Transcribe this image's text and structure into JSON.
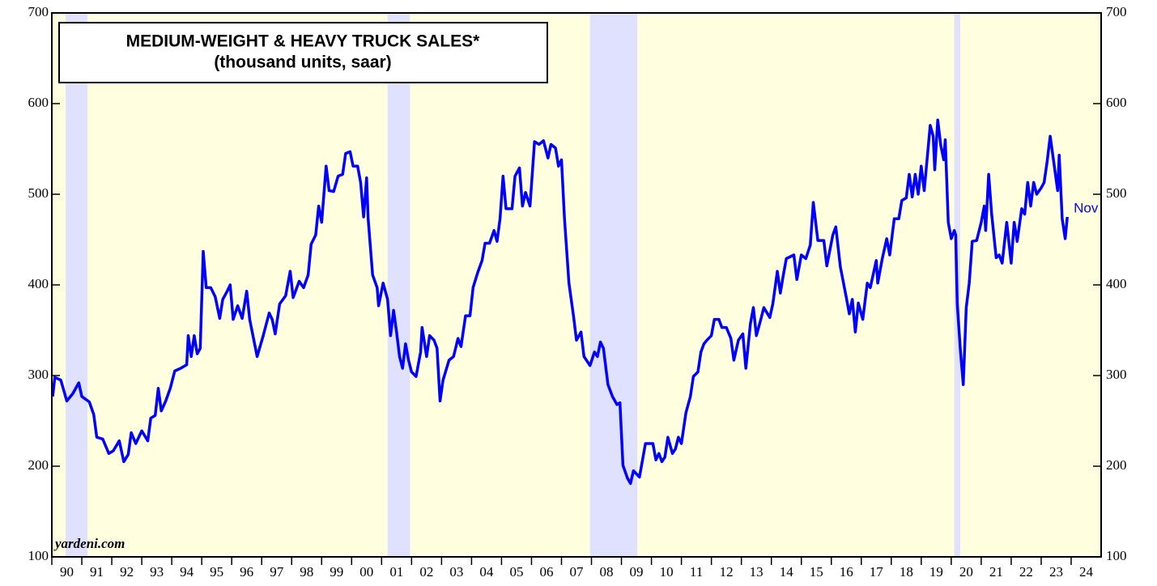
{
  "chart_data": {
    "type": "line",
    "title": "MEDIUM-WEIGHT & HEAVY TRUCK SALES*",
    "subtitle": "(thousand units, saar)",
    "source": "yardeni.com",
    "end_label": "Nov",
    "grid": false,
    "background": "#ffffe0",
    "recession_color": "#e0e0ff",
    "recessions": [
      [
        1990.46,
        1991.19
      ],
      [
        2001.2,
        2001.95
      ],
      [
        2007.95,
        2009.53
      ],
      [
        2020.1,
        2020.3
      ]
    ],
    "xlim": [
      1990,
      2025
    ],
    "xticks": [
      {
        "value": 1990,
        "label": "90"
      },
      {
        "value": 1991,
        "label": "91"
      },
      {
        "value": 1992,
        "label": "92"
      },
      {
        "value": 1993,
        "label": "93"
      },
      {
        "value": 1994,
        "label": "94"
      },
      {
        "value": 1995,
        "label": "95"
      },
      {
        "value": 1996,
        "label": "96"
      },
      {
        "value": 1997,
        "label": "97"
      },
      {
        "value": 1998,
        "label": "98"
      },
      {
        "value": 1999,
        "label": "99"
      },
      {
        "value": 2000,
        "label": "00"
      },
      {
        "value": 2001,
        "label": "01"
      },
      {
        "value": 2002,
        "label": "02"
      },
      {
        "value": 2003,
        "label": "03"
      },
      {
        "value": 2004,
        "label": "04"
      },
      {
        "value": 2005,
        "label": "05"
      },
      {
        "value": 2006,
        "label": "06"
      },
      {
        "value": 2007,
        "label": "07"
      },
      {
        "value": 2008,
        "label": "08"
      },
      {
        "value": 2009,
        "label": "09"
      },
      {
        "value": 2010,
        "label": "10"
      },
      {
        "value": 2011,
        "label": "11"
      },
      {
        "value": 2012,
        "label": "12"
      },
      {
        "value": 2013,
        "label": "13"
      },
      {
        "value": 2014,
        "label": "14"
      },
      {
        "value": 2015,
        "label": "15"
      },
      {
        "value": 2016,
        "label": "16"
      },
      {
        "value": 2017,
        "label": "17"
      },
      {
        "value": 2018,
        "label": "18"
      },
      {
        "value": 2019,
        "label": "19"
      },
      {
        "value": 2020,
        "label": "20"
      },
      {
        "value": 2021,
        "label": "21"
      },
      {
        "value": 2022,
        "label": "22"
      },
      {
        "value": 2023,
        "label": "23"
      },
      {
        "value": 2024,
        "label": "24"
      }
    ],
    "ylim": [
      100,
      700
    ],
    "yticks": [
      100,
      200,
      300,
      400,
      500,
      600,
      700
    ],
    "series": [
      {
        "color": "#0000ff",
        "x": [
          1990.03,
          1990.1,
          1990.3,
          1990.5,
          1990.7,
          1990.9,
          1991.0,
          1991.25,
          1991.4,
          1991.5,
          1991.7,
          1991.9,
          1992.05,
          1992.25,
          1992.4,
          1992.55,
          1992.65,
          1992.8,
          1993.0,
          1993.2,
          1993.3,
          1993.45,
          1993.55,
          1993.65,
          1993.8,
          1993.95,
          1994.1,
          1994.3,
          1994.5,
          1994.55,
          1994.65,
          1994.75,
          1994.85,
          1994.95,
          1995.05,
          1995.15,
          1995.3,
          1995.45,
          1995.6,
          1995.7,
          1995.85,
          1995.95,
          1996.05,
          1996.2,
          1996.35,
          1996.5,
          1996.6,
          1996.85,
          1997.05,
          1997.25,
          1997.35,
          1997.45,
          1997.6,
          1997.8,
          1997.95,
          1998.05,
          1998.25,
          1998.4,
          1998.55,
          1998.65,
          1998.8,
          1998.9,
          1999.0,
          1999.15,
          1999.25,
          1999.4,
          1999.55,
          1999.7,
          1999.8,
          1999.95,
          2000.05,
          2000.2,
          2000.3,
          2000.4,
          2000.5,
          2000.55,
          2000.7,
          2000.85,
          2000.9,
          2001.05,
          2001.2,
          2001.3,
          2001.4,
          2001.5,
          2001.6,
          2001.7,
          2001.8,
          2001.9,
          2002.0,
          2002.15,
          2002.3,
          2002.35,
          2002.5,
          2002.6,
          2002.75,
          2002.85,
          2002.95,
          2003.05,
          2003.25,
          2003.4,
          2003.55,
          2003.65,
          2003.8,
          2003.95,
          2004.05,
          2004.2,
          2004.35,
          2004.45,
          2004.6,
          2004.75,
          2004.85,
          2004.95,
          2005.05,
          2005.15,
          2005.35,
          2005.45,
          2005.6,
          2005.7,
          2005.8,
          2005.95,
          2006.1,
          2006.25,
          2006.4,
          2006.55,
          2006.65,
          2006.8,
          2006.9,
          2007.0,
          2007.1,
          2007.25,
          2007.4,
          2007.5,
          2007.65,
          2007.75,
          2007.95,
          2008.1,
          2008.2,
          2008.3,
          2008.4,
          2008.55,
          2008.7,
          2008.85,
          2008.95,
          2009.05,
          2009.2,
          2009.3,
          2009.4,
          2009.6,
          2009.8,
          2010.05,
          2010.15,
          2010.25,
          2010.35,
          2010.45,
          2010.55,
          2010.7,
          2010.8,
          2010.9,
          2011.0,
          2011.15,
          2011.3,
          2011.4,
          2011.55,
          2011.65,
          2011.75,
          2011.85,
          2012.0,
          2012.1,
          2012.25,
          2012.35,
          2012.5,
          2012.65,
          2012.75,
          2012.9,
          2013.05,
          2013.15,
          2013.3,
          2013.4,
          2013.5,
          2013.65,
          2013.75,
          2013.95,
          2014.05,
          2014.2,
          2014.3,
          2014.4,
          2014.5,
          2014.75,
          2014.85,
          2015.0,
          2015.15,
          2015.3,
          2015.4,
          2015.55,
          2015.75,
          2015.85,
          2016.05,
          2016.15,
          2016.3,
          2016.5,
          2016.6,
          2016.7,
          2016.8,
          2016.9,
          2017.05,
          2017.2,
          2017.3,
          2017.5,
          2017.55,
          2017.7,
          2017.85,
          2017.95,
          2018.1,
          2018.25,
          2018.35,
          2018.5,
          2018.6,
          2018.7,
          2018.8,
          2018.9,
          2019.0,
          2019.1,
          2019.3,
          2019.4,
          2019.45,
          2019.55,
          2019.65,
          2019.75,
          2019.8,
          2019.9,
          2020.0,
          2020.1,
          2020.15,
          2020.2,
          2020.3,
          2020.4,
          2020.5,
          2020.6,
          2020.7,
          2020.85,
          2021.0,
          2021.1,
          2021.15,
          2021.25,
          2021.35,
          2021.5,
          2021.6,
          2021.7,
          2021.85,
          2022.0,
          2022.1,
          2022.2,
          2022.35,
          2022.45,
          2022.55,
          2022.65,
          2022.75,
          2022.85,
          2023.0,
          2023.1,
          2023.2,
          2023.3,
          2023.4,
          2023.55,
          2023.6,
          2023.7,
          2023.8,
          2023.87
        ],
        "values": [
          277,
          298,
          295,
          272,
          280,
          292,
          277,
          271,
          257,
          232,
          230,
          214,
          217,
          228,
          205,
          213,
          237,
          225,
          239,
          228,
          253,
          256,
          286,
          261,
          272,
          286,
          305,
          308,
          312,
          344,
          321,
          344,
          324,
          330,
          437,
          397,
          397,
          387,
          363,
          384,
          393,
          400,
          362,
          377,
          363,
          393,
          362,
          321,
          344,
          369,
          362,
          346,
          379,
          388,
          415,
          386,
          404,
          397,
          411,
          445,
          455,
          487,
          469,
          531,
          504,
          503,
          520,
          522,
          545,
          547,
          531,
          531,
          513,
          475,
          518,
          473,
          411,
          397,
          377,
          402,
          384,
          344,
          372,
          348,
          321,
          308,
          335,
          317,
          304,
          299,
          326,
          353,
          321,
          344,
          339,
          330,
          272,
          295,
          317,
          321,
          341,
          332,
          366,
          366,
          397,
          413,
          427,
          446,
          446,
          460,
          448,
          473,
          520,
          484,
          484,
          520,
          529,
          487,
          502,
          487,
          558,
          555,
          559,
          540,
          555,
          551,
          531,
          538,
          473,
          402,
          366,
          339,
          348,
          321,
          311,
          326,
          321,
          337,
          330,
          290,
          277,
          268,
          270,
          201,
          187,
          181,
          195,
          188,
          225,
          225,
          207,
          214,
          205,
          210,
          232,
          214,
          219,
          232,
          225,
          259,
          277,
          299,
          304,
          326,
          335,
          339,
          344,
          362,
          362,
          353,
          353,
          341,
          317,
          339,
          346,
          308,
          357,
          375,
          344,
          362,
          375,
          364,
          379,
          415,
          391,
          411,
          429,
          433,
          406,
          433,
          429,
          444,
          491,
          449,
          449,
          421,
          455,
          464,
          420,
          386,
          368,
          384,
          348,
          380,
          362,
          402,
          397,
          427,
          402,
          429,
          451,
          433,
          473,
          473,
          493,
          496,
          522,
          497,
          522,
          500,
          531,
          504,
          576,
          564,
          527,
          582,
          554,
          538,
          560,
          469,
          451,
          460,
          455,
          379,
          330,
          290,
          375,
          402,
          448,
          449,
          469,
          487,
          460,
          522,
          478,
          430,
          433,
          424,
          469,
          424,
          469,
          448,
          484,
          478,
          513,
          487,
          513,
          500,
          507,
          513,
          536,
          564,
          540,
          504,
          543,
          473,
          451,
          475
        ]
      }
    ]
  }
}
